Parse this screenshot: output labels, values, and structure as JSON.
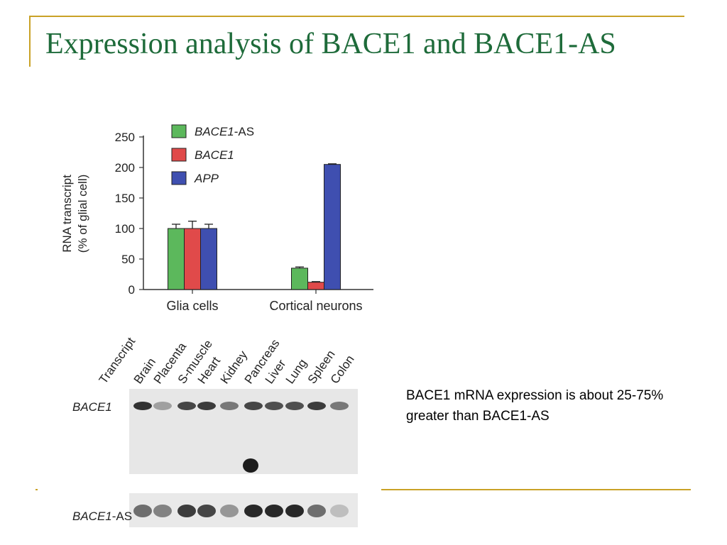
{
  "slide": {
    "title": "Expression analysis of BACE1 and BACE1-AS",
    "note": "BACE1 mRNA expression is about 25-75% greater than BACE1-AS"
  },
  "chart_data": {
    "type": "bar",
    "ylabel_line1": "RNA transcript",
    "ylabel_line2": "(% of glial cell)",
    "ylim": [
      0,
      250
    ],
    "yticks": [
      0,
      50,
      100,
      150,
      200,
      250
    ],
    "categories": [
      "Glia cells",
      "Cortical neurons"
    ],
    "series": [
      {
        "name": "BACE1-AS",
        "name_main": "BACE1",
        "name_suffix": "-AS",
        "color": "#5cb85c",
        "values": [
          100,
          35
        ],
        "errors": [
          7,
          2
        ]
      },
      {
        "name": "BACE1",
        "name_main": "BACE1",
        "name_suffix": "",
        "color": "#e04a4a",
        "values": [
          100,
          12
        ],
        "errors": [
          12,
          1
        ]
      },
      {
        "name": "APP",
        "name_main": "APP",
        "name_suffix": "",
        "color": "#3f4fb0",
        "values": [
          100,
          205
        ],
        "errors": [
          7,
          1
        ]
      }
    ],
    "legend_position": "top-left"
  },
  "blot": {
    "lane_labels": [
      "Transcript",
      "Brain",
      "Placenta",
      "S-muscle",
      "Heart",
      "Kidney",
      "Pancreas",
      "Liver",
      "Lung",
      "Spleen",
      "Colon"
    ],
    "rows": [
      {
        "label_main": "BACE1",
        "label_suffix": "",
        "intensities": [
          0.9,
          0.35,
          0.8,
          0.85,
          0.55,
          0.8,
          0.75,
          0.75,
          0.85,
          0.55
        ]
      },
      {
        "label_main": "BACE1",
        "label_suffix": "-AS",
        "intensities": [
          0.6,
          0.5,
          0.85,
          0.8,
          0.4,
          0.95,
          0.95,
          0.95,
          0.6,
          0.2
        ]
      }
    ]
  }
}
